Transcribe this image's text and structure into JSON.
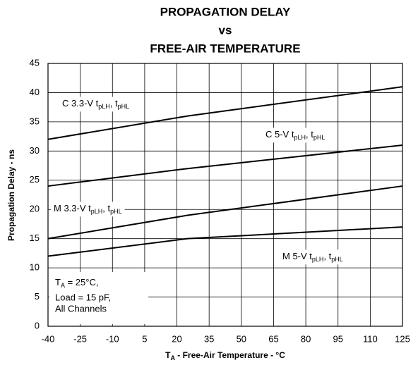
{
  "chart_data": {
    "type": "line",
    "title_lines": [
      "PROPAGATION DELAY",
      "vs",
      "FREE-AIR TEMPERATURE"
    ],
    "x_label_parts": [
      "T",
      "A",
      " - Free-Air Temperature - °C"
    ],
    "y_label": "Propagation Delay - ns",
    "x": [
      -40,
      25,
      125
    ],
    "series": [
      {
        "name_parts": [
          "C 3.3-V t",
          "pLH",
          ", t",
          "pHL"
        ],
        "color": "#000000",
        "values": [
          32,
          36,
          41
        ]
      },
      {
        "name_parts": [
          "C 5-V t",
          "pLH",
          ", t",
          "pHL"
        ],
        "color": "#000000",
        "values": [
          24,
          27,
          31
        ]
      },
      {
        "name_parts": [
          "M 3.3-V t",
          "pLH",
          ", t",
          "pHL"
        ],
        "color": "#000000",
        "values": [
          15,
          19,
          24
        ]
      },
      {
        "name_parts": [
          "M 5-V t",
          "pLH",
          ", t",
          "pHL"
        ],
        "color": "#000000",
        "values": [
          12,
          15,
          17
        ]
      }
    ],
    "annotation": {
      "line1_parts": [
        "T",
        "A",
        " = 25°C,"
      ],
      "line2": "Load = 15 pF,",
      "line3": "All Channels"
    },
    "xlim": [
      -40,
      125
    ],
    "xticks": [
      -40,
      -25,
      -10,
      5,
      20,
      35,
      50,
      65,
      80,
      95,
      110,
      125
    ],
    "ylim": [
      0,
      45
    ],
    "yticks": [
      0,
      5,
      10,
      15,
      20,
      25,
      30,
      35,
      40,
      45
    ],
    "grid": true
  }
}
